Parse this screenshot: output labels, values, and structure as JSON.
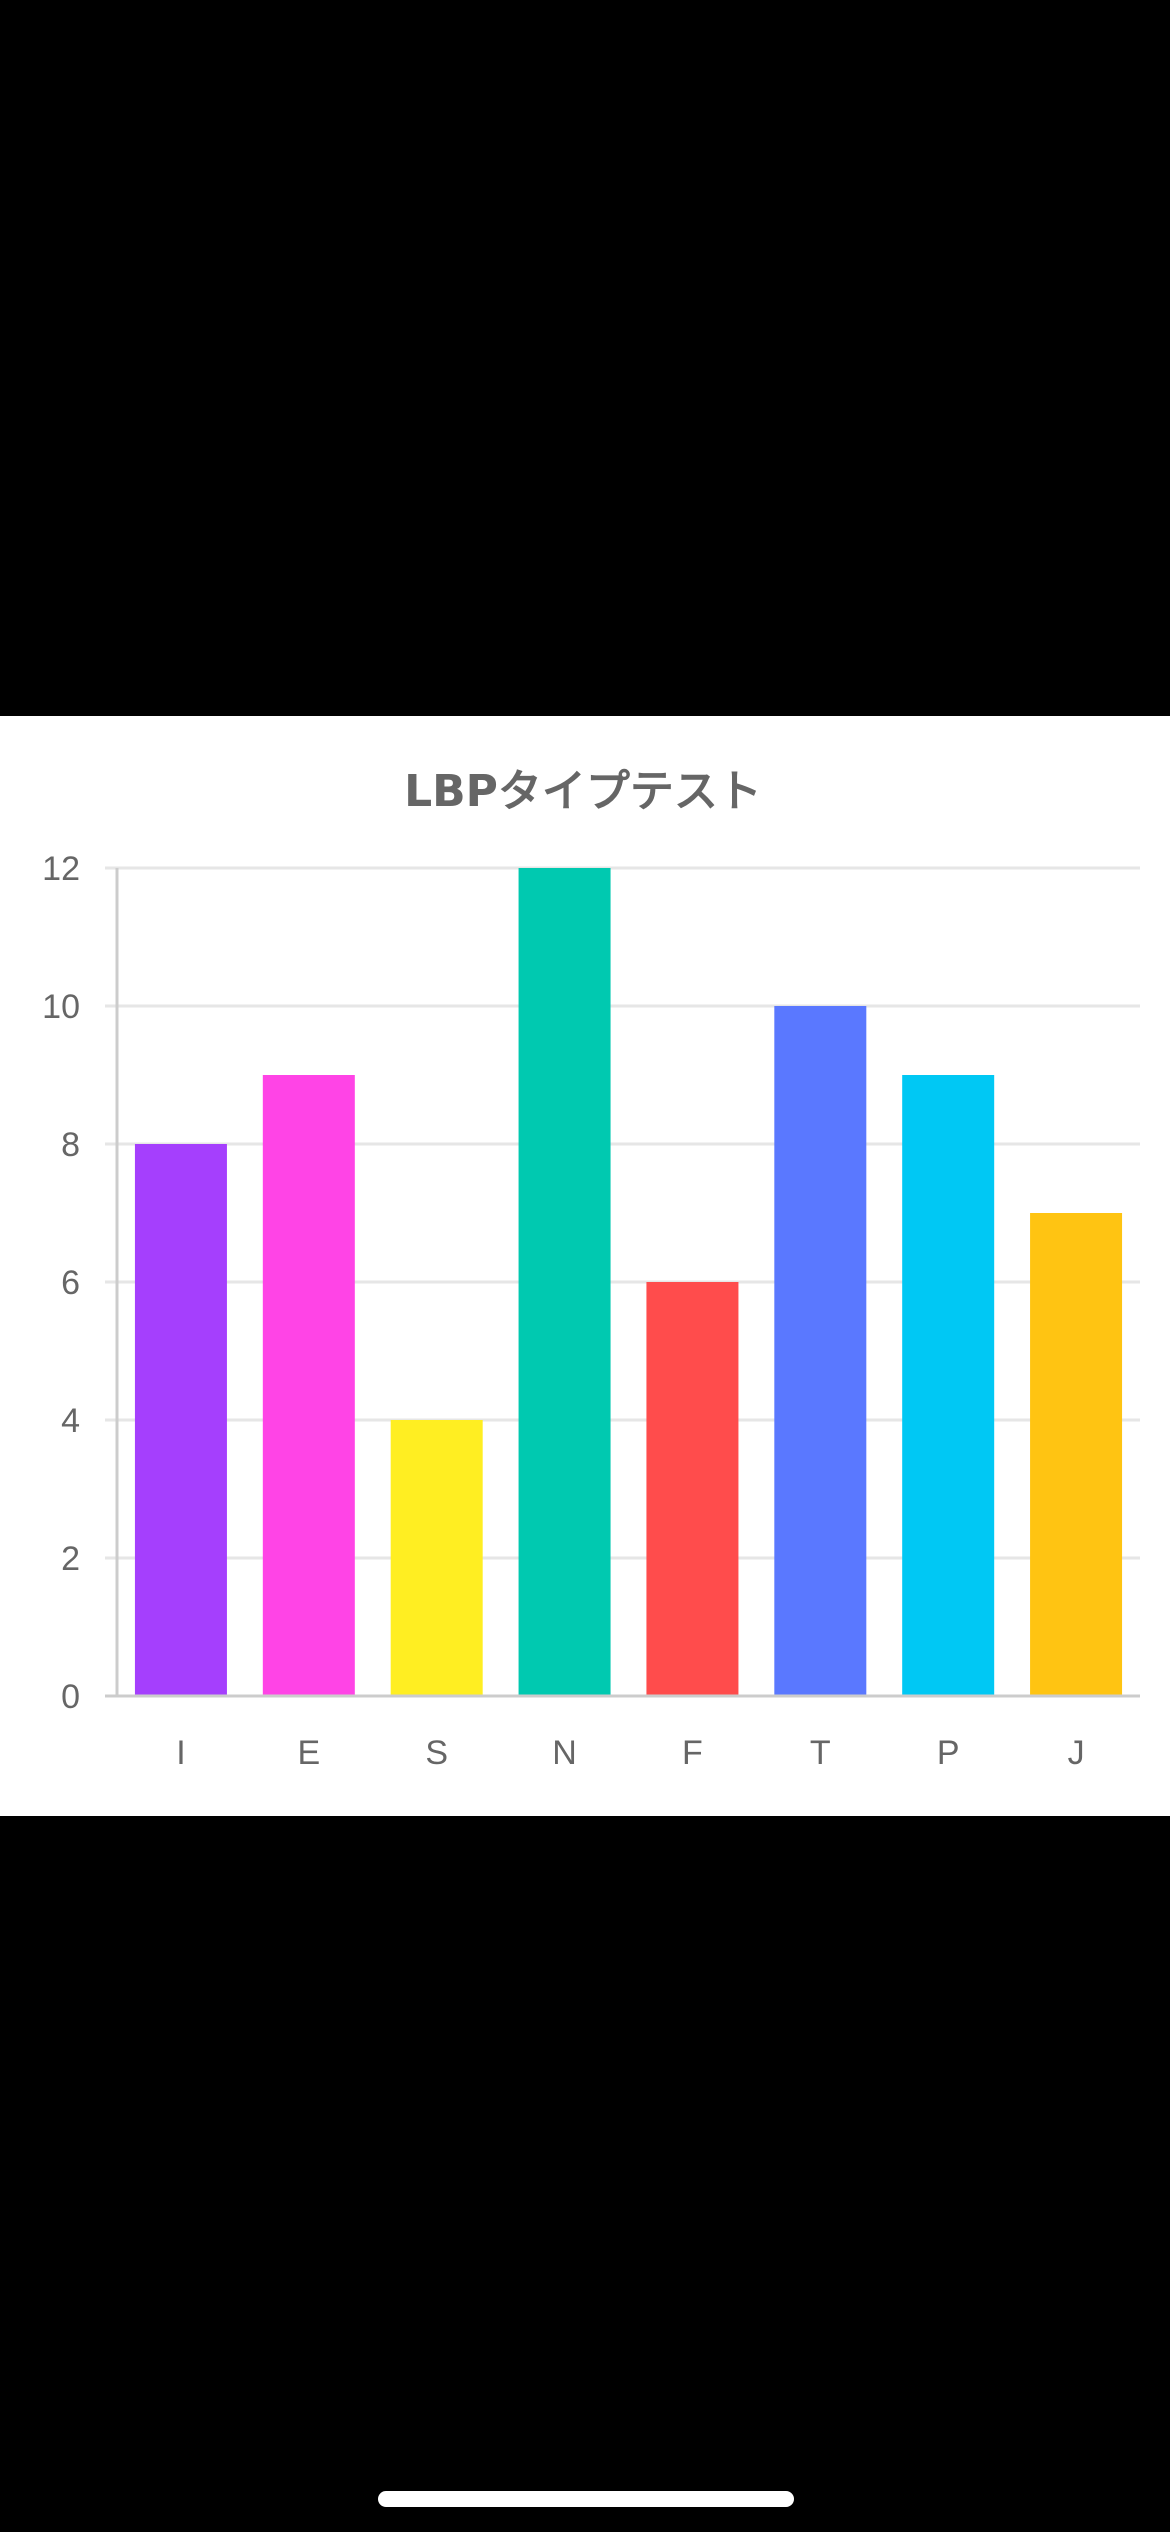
{
  "chart_data": {
    "type": "bar",
    "title": "LBPタイプテスト",
    "xlabel": "",
    "ylabel": "",
    "categories": [
      "I",
      "E",
      "S",
      "N",
      "F",
      "T",
      "P",
      "J"
    ],
    "values": [
      8,
      9,
      4,
      12,
      6,
      10,
      9,
      7
    ],
    "colors": [
      "#a53ffd",
      "#ff44e6",
      "#ffee22",
      "#00c9b0",
      "#ff4c4c",
      "#5a78ff",
      "#00c8f4",
      "#ffc412"
    ],
    "ylim": [
      0,
      12
    ],
    "yticks": [
      0,
      2,
      4,
      6,
      8,
      10,
      12
    ],
    "grid": true,
    "legend": "none"
  },
  "theme": {
    "background": "#000000",
    "panel": "#ffffff",
    "gridline": "#e6e6e6",
    "axis": "#cccccc",
    "text": "#666666"
  }
}
